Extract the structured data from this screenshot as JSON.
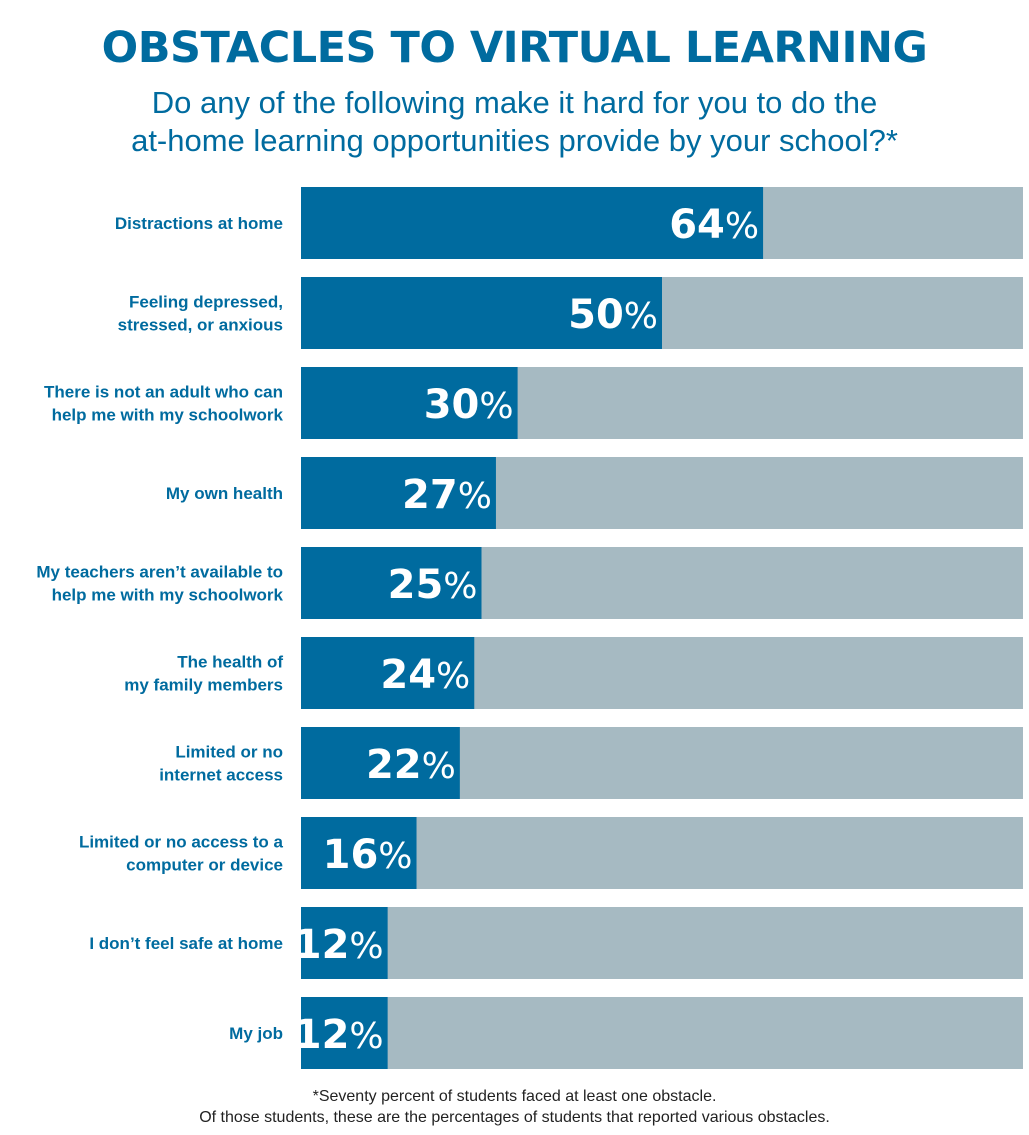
{
  "colors": {
    "accent": "#006b9f",
    "track": "#a6bac2",
    "label": "#006b9f",
    "value_text": "#ffffff"
  },
  "chart_data": {
    "type": "bar",
    "orientation": "horizontal",
    "title": "OBSTACLES TO VIRTUAL LEARNING",
    "subtitle_lines": [
      "Do any of the following make it hard for you to do the",
      "at-home learning opportunities provide by your school?*"
    ],
    "categories": [
      [
        "Distractions at home"
      ],
      [
        "Feeling depressed,",
        "stressed, or anxious"
      ],
      [
        "There is not an adult who can",
        "help me with my schoolwork"
      ],
      [
        "My own health"
      ],
      [
        "My teachers aren’t available to",
        "help me with my schoolwork"
      ],
      [
        "The health of",
        "my family members"
      ],
      [
        "Limited or no",
        "internet access"
      ],
      [
        "Limited or no access to a",
        "computer or device"
      ],
      [
        "I don’t feel safe at home"
      ],
      [
        "My job"
      ]
    ],
    "values": [
      64,
      50,
      30,
      27,
      25,
      24,
      22,
      16,
      12,
      12
    ],
    "unit": "%",
    "xlim": [
      0,
      100
    ],
    "legend": "none",
    "grid": false
  },
  "footnote": {
    "line1": "*Seventy percent of students faced at least one obstacle.",
    "line2": "Of those students, these are the percentages of students that reported various obstacles."
  }
}
